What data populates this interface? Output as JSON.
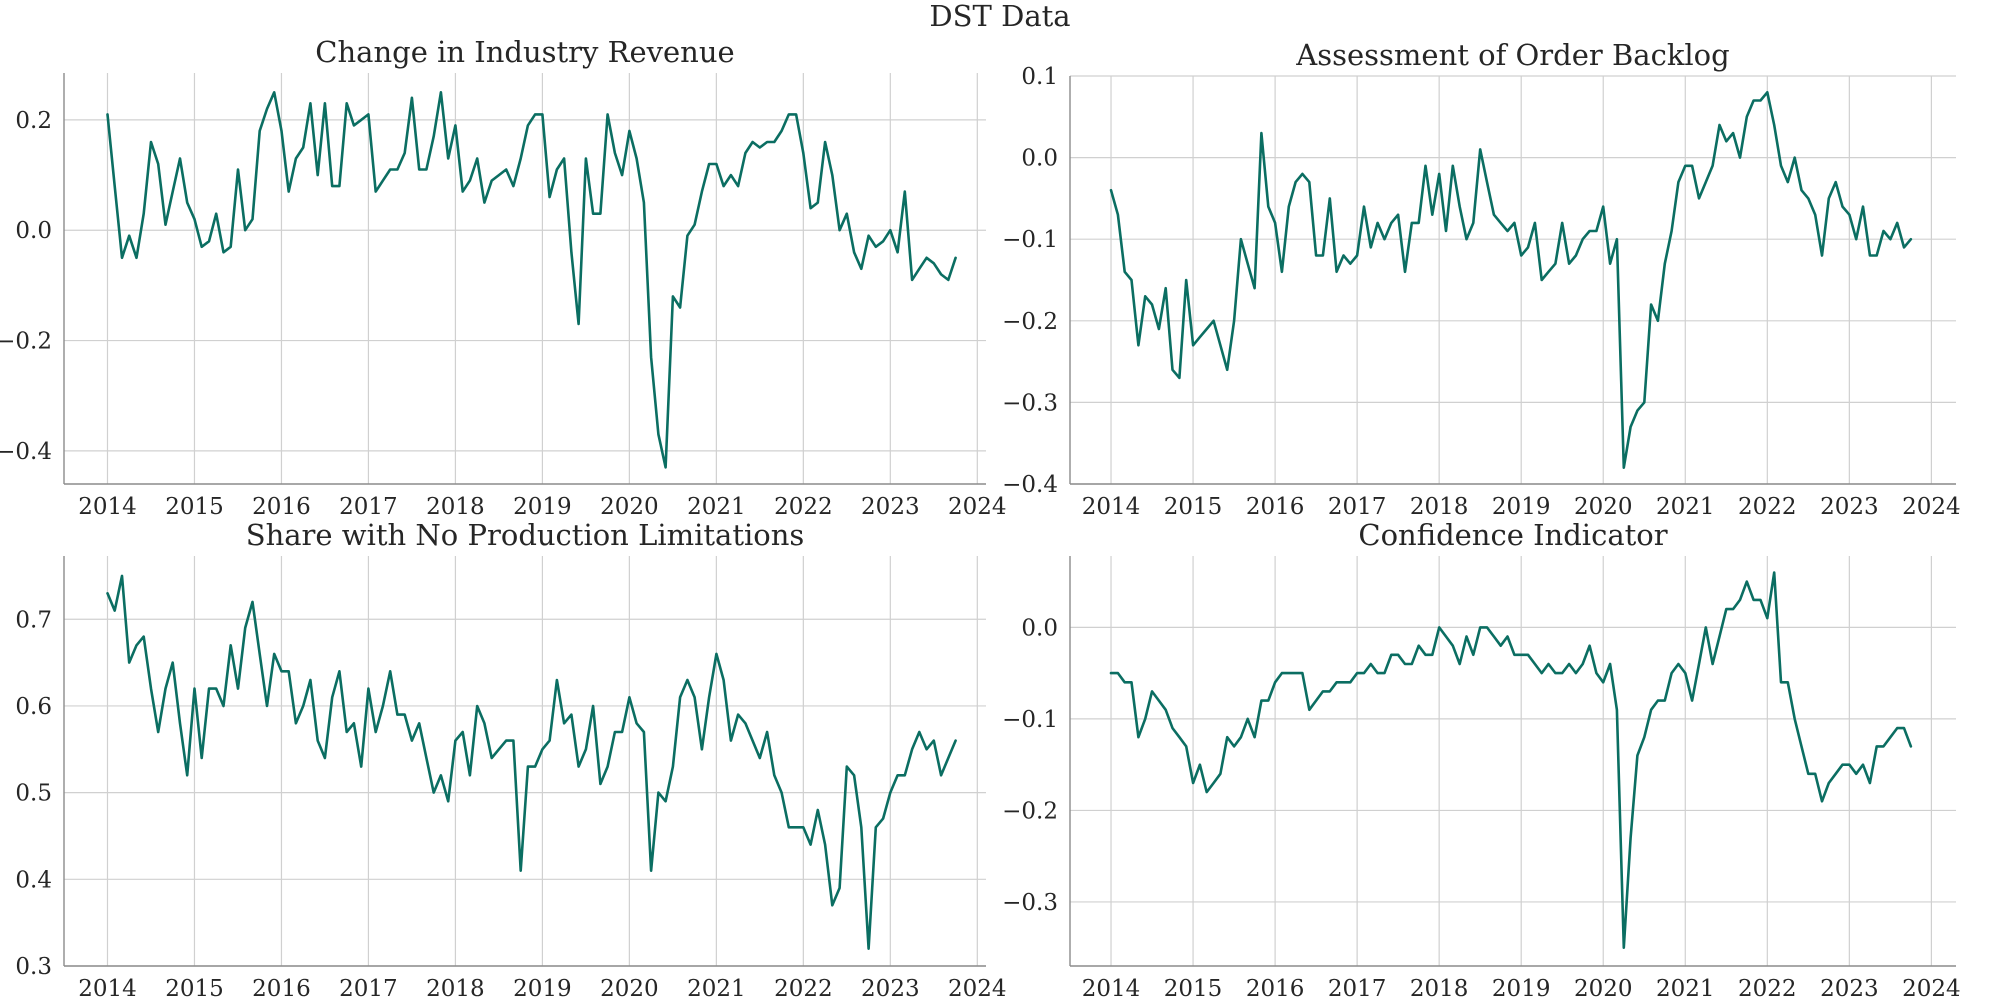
{
  "figure_title": "DST Data",
  "colors": {
    "line": "#0b6e62",
    "grid": "#d0d0d0",
    "axis": "#8c8c8c",
    "text": "#262626"
  },
  "chart_data": [
    {
      "type": "line",
      "title": "Change in Industry Revenue",
      "xlabel": "",
      "ylabel": "",
      "grid": true,
      "xlim": [
        2013.5,
        2024.1
      ],
      "ylim": [
        -0.46,
        0.285
      ],
      "x_ticks": [
        2014,
        2015,
        2016,
        2017,
        2018,
        2019,
        2020,
        2021,
        2022,
        2023,
        2024
      ],
      "y_ticks": [
        -0.4,
        -0.2,
        0.0,
        0.2
      ],
      "y_tick_labels": [
        "−0.4",
        "−0.2",
        "0.0",
        "0.2"
      ],
      "x_start": "2014-01",
      "frequency": "monthly",
      "values": [
        0.21,
        0.08,
        -0.05,
        -0.01,
        -0.05,
        0.03,
        0.16,
        0.12,
        0.01,
        0.07,
        0.13,
        0.05,
        0.02,
        -0.03,
        -0.02,
        0.03,
        -0.04,
        -0.03,
        0.11,
        0.0,
        0.02,
        0.18,
        0.22,
        0.25,
        0.18,
        0.07,
        0.13,
        0.15,
        0.23,
        0.1,
        0.23,
        0.08,
        0.08,
        0.23,
        0.19,
        0.2,
        0.21,
        0.07,
        0.09,
        0.11,
        0.11,
        0.14,
        0.24,
        0.11,
        0.11,
        0.17,
        0.25,
        0.13,
        0.19,
        0.07,
        0.09,
        0.13,
        0.05,
        0.09,
        0.1,
        0.11,
        0.08,
        0.13,
        0.19,
        0.21,
        0.21,
        0.06,
        0.11,
        0.13,
        -0.04,
        -0.17,
        0.13,
        0.03,
        0.03,
        0.21,
        0.14,
        0.1,
        0.18,
        0.13,
        0.05,
        -0.23,
        -0.37,
        -0.43,
        -0.12,
        -0.14,
        -0.01,
        0.01,
        0.07,
        0.12,
        0.12,
        0.08,
        0.1,
        0.08,
        0.14,
        0.16,
        0.15,
        0.16,
        0.16,
        0.18,
        0.21,
        0.21,
        0.14,
        0.04,
        0.05,
        0.16,
        0.1,
        0.0,
        0.03,
        -0.04,
        -0.07,
        -0.01,
        -0.03,
        -0.02,
        0.0,
        -0.04,
        0.07,
        -0.09,
        -0.07,
        -0.05,
        -0.06,
        -0.08,
        -0.09,
        -0.05
      ]
    },
    {
      "type": "line",
      "title": "Assessment of Order Backlog",
      "xlabel": "",
      "ylabel": "",
      "grid": true,
      "xlim": [
        2013.5,
        2024.3
      ],
      "ylim": [
        -0.4,
        0.1
      ],
      "x_ticks": [
        2014,
        2015,
        2016,
        2017,
        2018,
        2019,
        2020,
        2021,
        2022,
        2023,
        2024
      ],
      "y_ticks": [
        -0.4,
        -0.3,
        -0.2,
        -0.1,
        0.0,
        0.1
      ],
      "y_tick_labels": [
        "−0.4",
        "−0.3",
        "−0.2",
        "−0.1",
        "0.0",
        "0.1"
      ],
      "x_start": "2014-01",
      "frequency": "monthly",
      "values": [
        -0.04,
        -0.07,
        -0.14,
        -0.15,
        -0.23,
        -0.17,
        -0.18,
        -0.21,
        -0.16,
        -0.26,
        -0.27,
        -0.15,
        -0.23,
        -0.22,
        -0.21,
        -0.2,
        -0.23,
        -0.26,
        -0.2,
        -0.1,
        -0.13,
        -0.16,
        0.03,
        -0.06,
        -0.08,
        -0.14,
        -0.06,
        -0.03,
        -0.02,
        -0.03,
        -0.12,
        -0.12,
        -0.05,
        -0.14,
        -0.12,
        -0.13,
        -0.12,
        -0.06,
        -0.11,
        -0.08,
        -0.1,
        -0.08,
        -0.07,
        -0.14,
        -0.08,
        -0.08,
        -0.01,
        -0.07,
        -0.02,
        -0.09,
        -0.01,
        -0.06,
        -0.1,
        -0.08,
        0.01,
        -0.03,
        -0.07,
        -0.08,
        -0.09,
        -0.08,
        -0.12,
        -0.11,
        -0.08,
        -0.15,
        -0.14,
        -0.13,
        -0.08,
        -0.13,
        -0.12,
        -0.1,
        -0.09,
        -0.09,
        -0.06,
        -0.13,
        -0.1,
        -0.38,
        -0.33,
        -0.31,
        -0.3,
        -0.18,
        -0.2,
        -0.13,
        -0.09,
        -0.03,
        -0.01,
        -0.01,
        -0.05,
        -0.03,
        -0.01,
        0.04,
        0.02,
        0.03,
        0.0,
        0.05,
        0.07,
        0.07,
        0.08,
        0.04,
        -0.01,
        -0.03,
        0.0,
        -0.04,
        -0.05,
        -0.07,
        -0.12,
        -0.05,
        -0.03,
        -0.06,
        -0.07,
        -0.1,
        -0.06,
        -0.12,
        -0.12,
        -0.09,
        -0.1,
        -0.08,
        -0.11,
        -0.1
      ]
    },
    {
      "type": "line",
      "title": "Share with No Production Limitations",
      "xlabel": "",
      "ylabel": "",
      "grid": true,
      "xlim": [
        2013.5,
        2024.1
      ],
      "ylim": [
        0.3,
        0.773
      ],
      "x_ticks": [
        2014,
        2015,
        2016,
        2017,
        2018,
        2019,
        2020,
        2021,
        2022,
        2023,
        2024
      ],
      "y_ticks": [
        0.3,
        0.4,
        0.5,
        0.6,
        0.7
      ],
      "y_tick_labels": [
        "0.3",
        "0.4",
        "0.5",
        "0.6",
        "0.7"
      ],
      "x_start": "2014-01",
      "frequency": "monthly",
      "values": [
        0.73,
        0.71,
        0.75,
        0.65,
        0.67,
        0.68,
        0.62,
        0.57,
        0.62,
        0.65,
        0.58,
        0.52,
        0.62,
        0.54,
        0.62,
        0.62,
        0.6,
        0.67,
        0.62,
        0.69,
        0.72,
        0.66,
        0.6,
        0.66,
        0.64,
        0.64,
        0.58,
        0.6,
        0.63,
        0.56,
        0.54,
        0.61,
        0.64,
        0.57,
        0.58,
        0.53,
        0.62,
        0.57,
        0.6,
        0.64,
        0.59,
        0.59,
        0.56,
        0.58,
        0.54,
        0.5,
        0.52,
        0.49,
        0.56,
        0.57,
        0.52,
        0.6,
        0.58,
        0.54,
        0.55,
        0.56,
        0.56,
        0.41,
        0.53,
        0.53,
        0.55,
        0.56,
        0.63,
        0.58,
        0.59,
        0.53,
        0.55,
        0.6,
        0.51,
        0.53,
        0.57,
        0.57,
        0.61,
        0.58,
        0.57,
        0.41,
        0.5,
        0.49,
        0.53,
        0.61,
        0.63,
        0.61,
        0.55,
        0.61,
        0.66,
        0.63,
        0.56,
        0.59,
        0.58,
        0.56,
        0.54,
        0.57,
        0.52,
        0.5,
        0.46,
        0.46,
        0.46,
        0.44,
        0.48,
        0.44,
        0.37,
        0.39,
        0.53,
        0.52,
        0.46,
        0.32,
        0.46,
        0.47,
        0.5,
        0.52,
        0.52,
        0.55,
        0.57,
        0.55,
        0.56,
        0.52,
        0.54,
        0.56
      ]
    },
    {
      "type": "line",
      "title": "Confidence Indicator",
      "xlabel": "",
      "ylabel": "",
      "grid": true,
      "xlim": [
        2013.5,
        2024.3
      ],
      "ylim": [
        -0.37,
        0.078
      ],
      "x_ticks": [
        2014,
        2015,
        2016,
        2017,
        2018,
        2019,
        2020,
        2021,
        2022,
        2023,
        2024
      ],
      "y_ticks": [
        -0.3,
        -0.2,
        -0.1,
        0.0
      ],
      "y_tick_labels": [
        "−0.3",
        "−0.2",
        "−0.1",
        "0.0"
      ],
      "x_start": "2014-01",
      "frequency": "monthly",
      "values": [
        -0.05,
        -0.05,
        -0.06,
        -0.06,
        -0.12,
        -0.1,
        -0.07,
        -0.08,
        -0.09,
        -0.11,
        -0.12,
        -0.13,
        -0.17,
        -0.15,
        -0.18,
        -0.17,
        -0.16,
        -0.12,
        -0.13,
        -0.12,
        -0.1,
        -0.12,
        -0.08,
        -0.08,
        -0.06,
        -0.05,
        -0.05,
        -0.05,
        -0.05,
        -0.09,
        -0.08,
        -0.07,
        -0.07,
        -0.06,
        -0.06,
        -0.06,
        -0.05,
        -0.05,
        -0.04,
        -0.05,
        -0.05,
        -0.03,
        -0.03,
        -0.04,
        -0.04,
        -0.02,
        -0.03,
        -0.03,
        0.0,
        -0.01,
        -0.02,
        -0.04,
        -0.01,
        -0.03,
        0.0,
        0.0,
        -0.01,
        -0.02,
        -0.01,
        -0.03,
        -0.03,
        -0.03,
        -0.04,
        -0.05,
        -0.04,
        -0.05,
        -0.05,
        -0.04,
        -0.05,
        -0.04,
        -0.02,
        -0.05,
        -0.06,
        -0.04,
        -0.09,
        -0.35,
        -0.23,
        -0.14,
        -0.12,
        -0.09,
        -0.08,
        -0.08,
        -0.05,
        -0.04,
        -0.05,
        -0.08,
        -0.04,
        0.0,
        -0.04,
        -0.01,
        0.02,
        0.02,
        0.03,
        0.05,
        0.03,
        0.03,
        0.01,
        0.06,
        -0.06,
        -0.06,
        -0.1,
        -0.13,
        -0.16,
        -0.16,
        -0.19,
        -0.17,
        -0.16,
        -0.15,
        -0.15,
        -0.16,
        -0.15,
        -0.17,
        -0.13,
        -0.13,
        -0.12,
        -0.11,
        -0.11,
        -0.13
      ]
    }
  ]
}
